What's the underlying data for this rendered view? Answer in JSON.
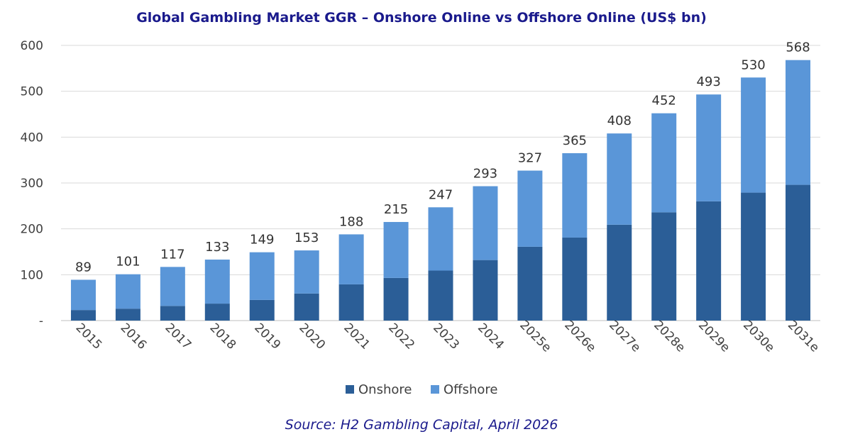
{
  "chart_data": {
    "type": "bar",
    "stacked": true,
    "title": "Global Gambling Market GGR – Onshore Online vs Offshore Online (US$ bn)",
    "source": "Source: H2 Gambling Capital, April 2026",
    "categories": [
      "2015",
      "2016",
      "2017",
      "2018",
      "2019",
      "2020",
      "2021",
      "2022",
      "2023",
      "2024",
      "2025e",
      "2026e",
      "2027e",
      "2028e",
      "2029e",
      "2030e",
      "2031e"
    ],
    "series": [
      {
        "name": "Onshore",
        "color": "#2b5e97",
        "values": [
          23,
          26,
          32,
          37,
          45,
          59,
          79,
          93,
          109,
          132,
          161,
          181,
          209,
          236,
          260,
          279,
          296
        ]
      },
      {
        "name": "Offshore",
        "color": "#5a96d8",
        "values": [
          66,
          75,
          85,
          96,
          104,
          94,
          109,
          122,
          138,
          161,
          166,
          184,
          199,
          216,
          233,
          251,
          272
        ]
      }
    ],
    "totals": [
      "89",
      "101",
      "117",
      "133",
      "149",
      "153",
      "188",
      "215",
      "247",
      "293",
      "327",
      "365",
      "408",
      "452",
      "493",
      "530",
      "568"
    ],
    "y_ticks": [
      "-",
      "100",
      "200",
      "300",
      "400",
      "500",
      "600"
    ],
    "ylim": [
      0,
      600
    ],
    "grid": true,
    "legend_position": "bottom"
  }
}
